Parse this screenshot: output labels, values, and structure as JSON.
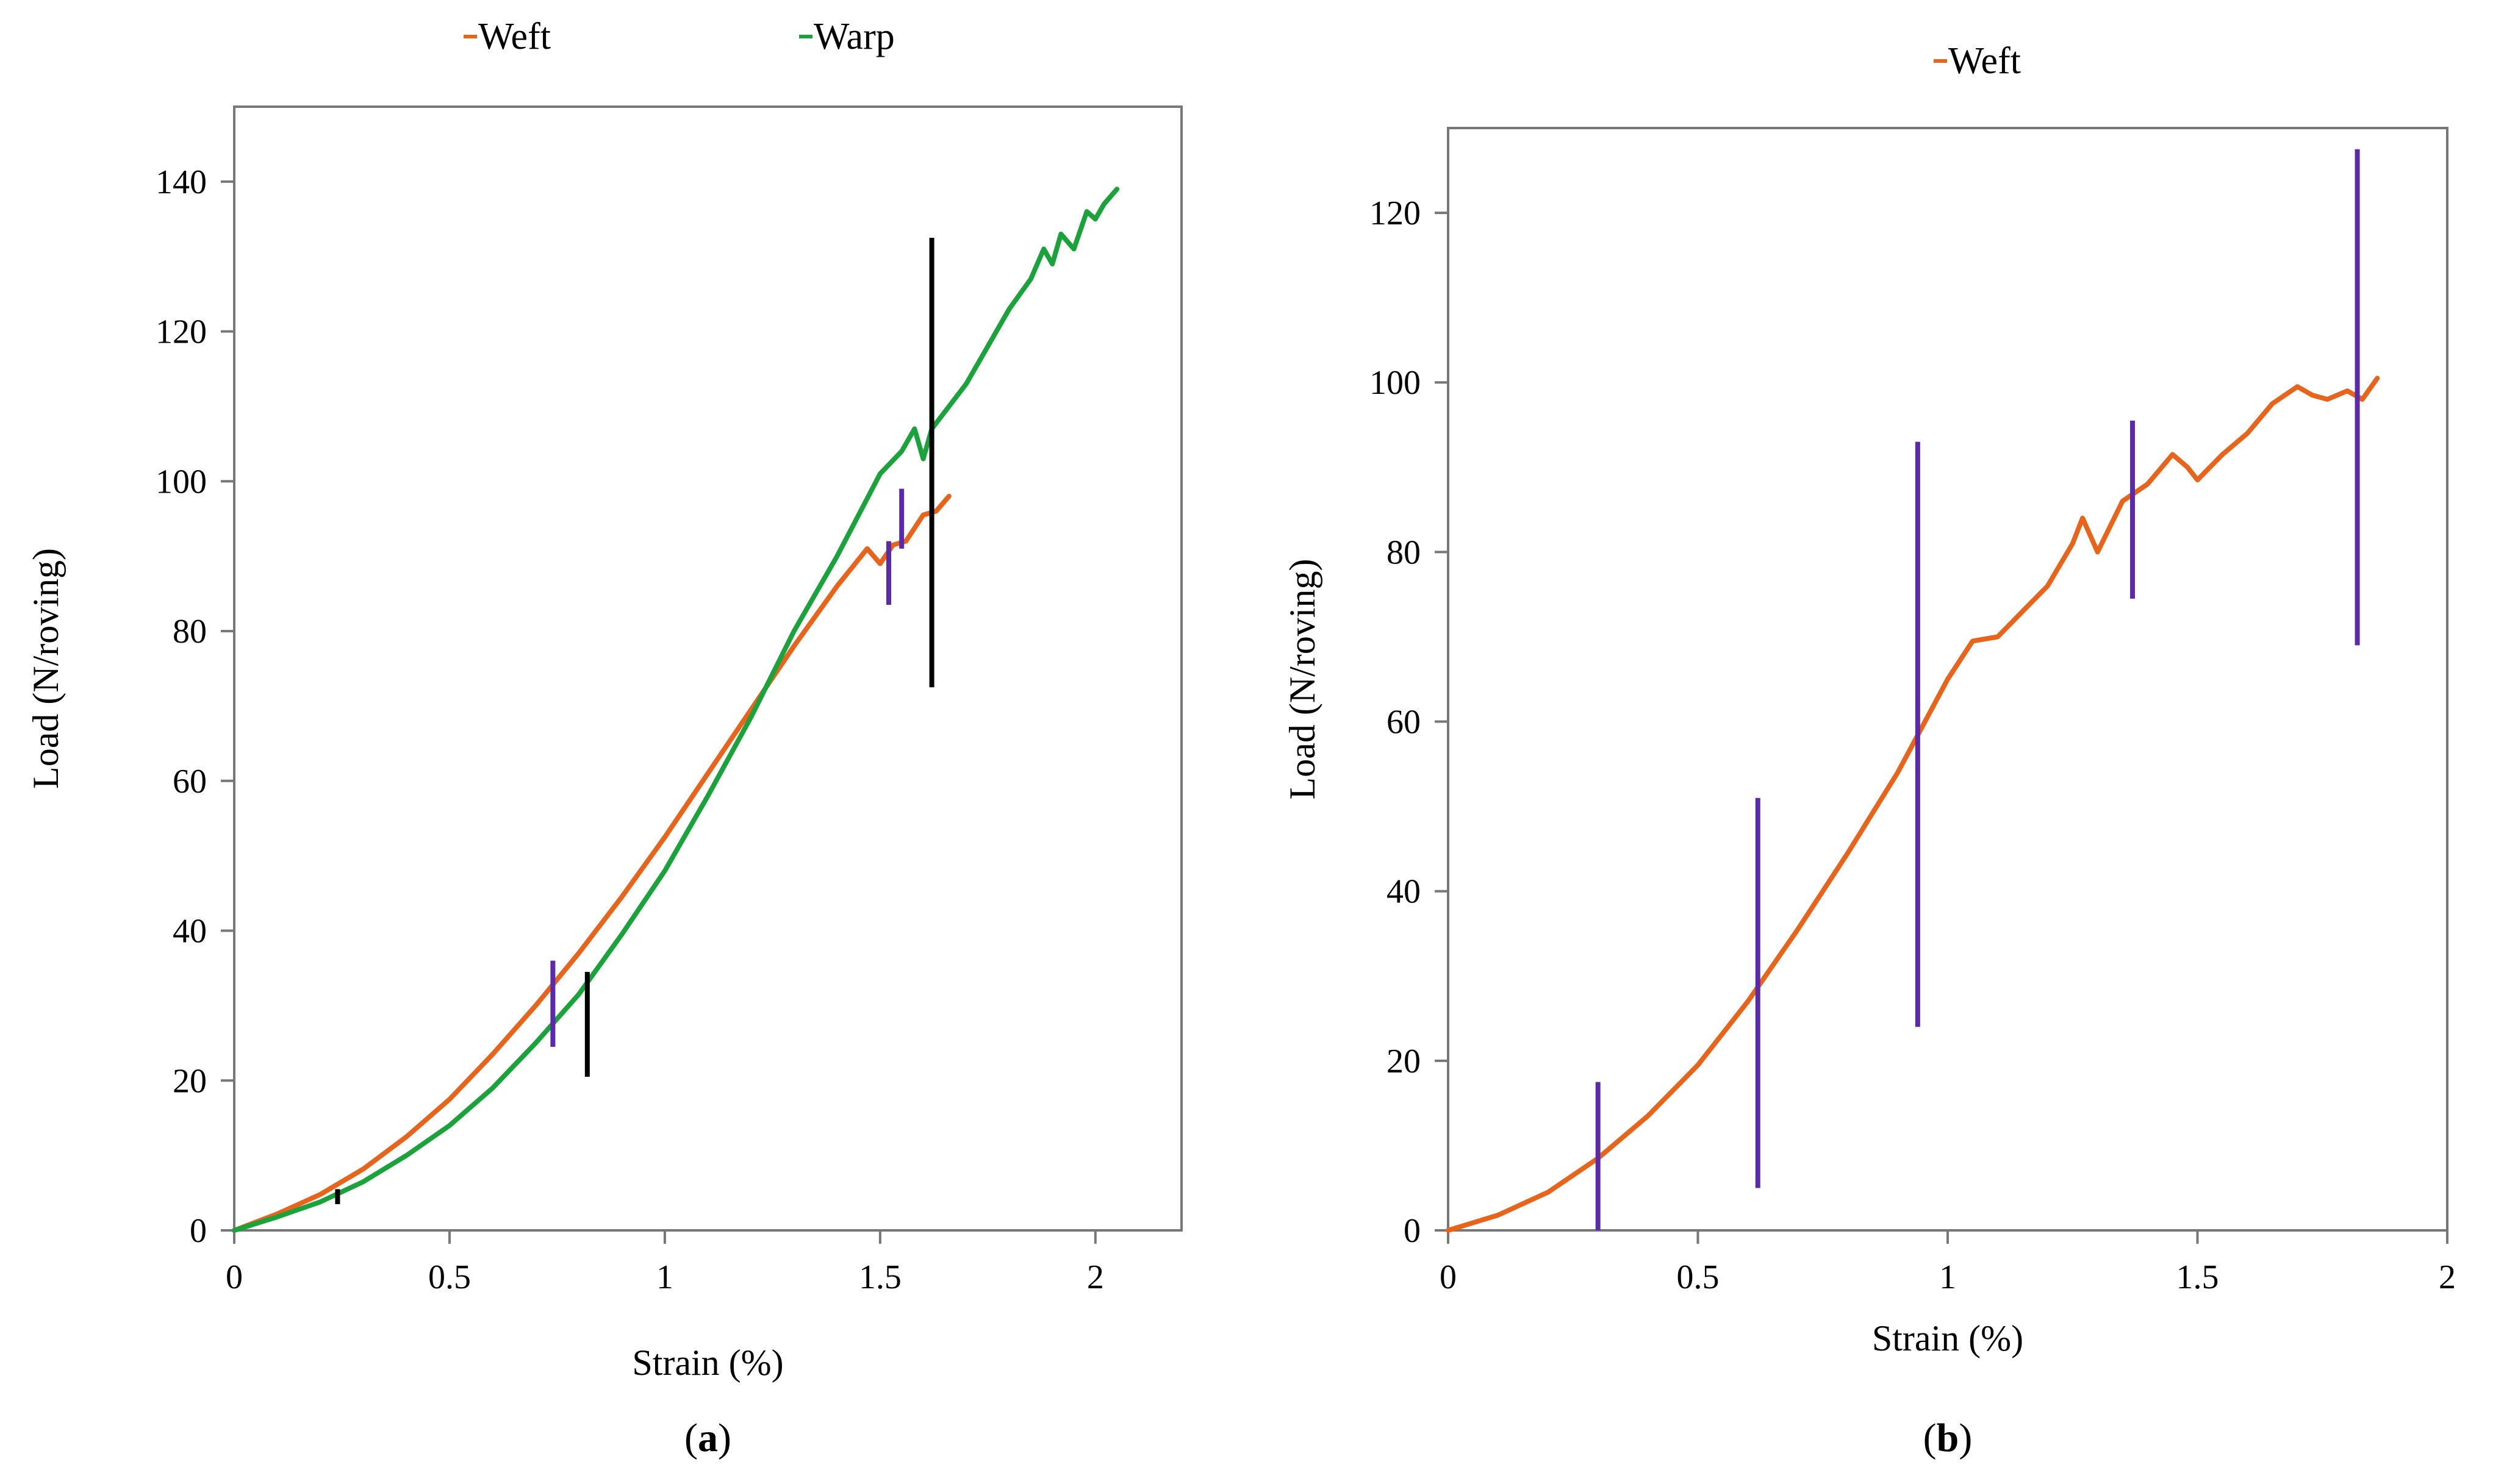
{
  "chart_data": [
    {
      "type": "line",
      "panel": "a",
      "caption": "a",
      "xlabel": "Strain  (%)",
      "ylabel": "Load (N/roving)",
      "xlim": [
        0,
        2.2
      ],
      "ylim": [
        0,
        150
      ],
      "xticks": [
        "0",
        "0.5",
        "1",
        "1.5",
        "2"
      ],
      "yticks": [
        "0",
        "20",
        "40",
        "60",
        "80",
        "100",
        "120",
        "140"
      ],
      "legend": [
        "Weft",
        "Warp"
      ],
      "legend_position": "top",
      "series": [
        {
          "name": "Weft",
          "color": "#e8641b",
          "x": [
            0,
            0.1,
            0.2,
            0.3,
            0.4,
            0.5,
            0.6,
            0.7,
            0.8,
            0.9,
            1.0,
            1.1,
            1.2,
            1.3,
            1.4,
            1.47,
            1.5,
            1.53,
            1.56,
            1.6,
            1.63,
            1.66
          ],
          "y": [
            0,
            2.2,
            4.8,
            8.2,
            12.5,
            17.5,
            23.5,
            30,
            37,
            44.5,
            52.5,
            61,
            69.5,
            78,
            86,
            91,
            89,
            91.5,
            92,
            95.5,
            96,
            98
          ]
        },
        {
          "name": "Warp",
          "color": "#1aa33a",
          "x": [
            0,
            0.1,
            0.2,
            0.3,
            0.4,
            0.5,
            0.6,
            0.7,
            0.8,
            0.9,
            1.0,
            1.1,
            1.2,
            1.3,
            1.4,
            1.5,
            1.55,
            1.58,
            1.6,
            1.62,
            1.66,
            1.7,
            1.75,
            1.8,
            1.85,
            1.88,
            1.9,
            1.92,
            1.95,
            1.98,
            2.0,
            2.02,
            2.05
          ],
          "y": [
            0,
            1.8,
            3.8,
            6.5,
            10,
            14,
            19,
            25,
            31.5,
            39.5,
            48,
            58,
            68.5,
            80,
            90,
            101,
            104,
            107,
            103,
            107,
            110,
            113,
            118,
            123,
            127,
            131,
            129,
            133,
            131,
            136,
            135,
            137,
            139
          ]
        }
      ],
      "error_bars": [
        {
          "x": 0.24,
          "low": 3.5,
          "high": 5.5,
          "color": "#000000"
        },
        {
          "x": 0.74,
          "low": 24.5,
          "high": 36,
          "color": "#5b2aa8"
        },
        {
          "x": 0.82,
          "low": 20.5,
          "high": 34.5,
          "color": "#000000"
        },
        {
          "x": 1.52,
          "low": 83.5,
          "high": 92,
          "color": "#5b2aa8"
        },
        {
          "x": 1.55,
          "low": 91,
          "high": 99,
          "color": "#5b2aa8"
        },
        {
          "x": 1.62,
          "low": 72.5,
          "high": 132.5,
          "color": "#000000"
        }
      ]
    },
    {
      "type": "line",
      "panel": "b",
      "caption": "b",
      "xlabel": "Strain (%)",
      "ylabel": "Load (N/roving)",
      "xlim": [
        0,
        2
      ],
      "ylim": [
        0,
        130
      ],
      "xticks": [
        "0",
        "0.5",
        "1",
        "1.5",
        "2"
      ],
      "yticks": [
        "0",
        "20",
        "40",
        "60",
        "80",
        "100",
        "120"
      ],
      "legend": [
        "Weft"
      ],
      "legend_position": "top",
      "series": [
        {
          "name": "Weft",
          "color": "#e8641b",
          "x": [
            0,
            0.1,
            0.2,
            0.3,
            0.4,
            0.5,
            0.6,
            0.7,
            0.8,
            0.9,
            1.0,
            1.05,
            1.1,
            1.15,
            1.2,
            1.25,
            1.27,
            1.3,
            1.35,
            1.4,
            1.45,
            1.48,
            1.5,
            1.55,
            1.6,
            1.65,
            1.7,
            1.73,
            1.76,
            1.8,
            1.83,
            1.86
          ],
          "y": [
            0,
            1.8,
            4.5,
            8.5,
            13.5,
            19.5,
            27,
            35.5,
            44.5,
            54,
            65,
            69.5,
            70,
            73,
            76,
            81,
            84,
            80,
            86,
            88,
            91.5,
            90,
            88.5,
            91.5,
            94,
            97.5,
            99.5,
            98.5,
            98,
            99,
            98,
            100.5
          ]
        }
      ],
      "error_bars": [
        {
          "x": 0.3,
          "low": 0,
          "high": 17.5,
          "color": "#5b2aa8"
        },
        {
          "x": 0.62,
          "low": 5,
          "high": 51,
          "color": "#5b2aa8"
        },
        {
          "x": 0.94,
          "low": 24,
          "high": 93,
          "color": "#5b2aa8"
        },
        {
          "x": 1.37,
          "low": 74.5,
          "high": 95.5,
          "color": "#5b2aa8"
        },
        {
          "x": 1.82,
          "low": 69,
          "high": 127.5,
          "color": "#5b2aa8"
        }
      ]
    }
  ]
}
